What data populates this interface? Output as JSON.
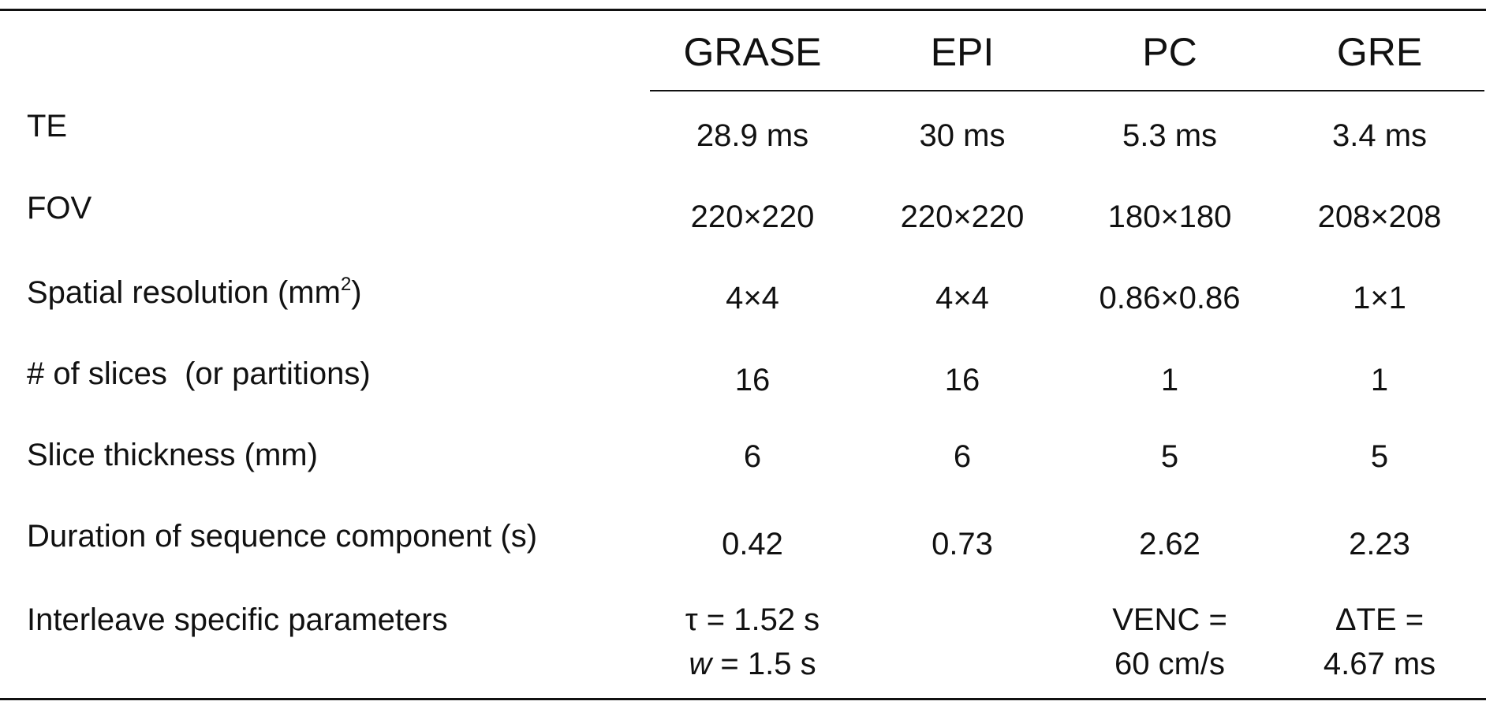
{
  "table": {
    "columns": [
      "GRASE",
      "EPI",
      "PC",
      "GRE"
    ],
    "rows": [
      {
        "label": "TE",
        "cells": [
          "28.9 ms",
          "30 ms",
          "5.3 ms",
          "3.4 ms"
        ]
      },
      {
        "label": "FOV",
        "cells": [
          "220×220",
          "220×220",
          "180×180",
          "208×208"
        ]
      },
      {
        "label": "Spatial resolution (mm",
        "label_sup": "2",
        "label_end": ")",
        "cells": [
          "4×4",
          "4×4",
          "0.86×0.86",
          "1×1"
        ]
      },
      {
        "label": "# of slices  (or partitions)",
        "cells": [
          "16",
          "16",
          "1",
          "1"
        ]
      },
      {
        "label": "Slice thickness (mm)",
        "cells": [
          "6",
          "6",
          "5",
          "5"
        ]
      },
      {
        "label": "Duration of sequence component (s)",
        "cells": [
          "0.42",
          "0.73",
          "2.62",
          "2.23"
        ]
      },
      {
        "label": "Interleave specific parameters",
        "cells": [
          [
            "τ = 1.52 s",
            {
              "italic": "w",
              "text": " = 1.5 s"
            }
          ],
          null,
          [
            "VENC =",
            "60 cm/s"
          ],
          [
            "ΔTE =",
            "4.67 ms"
          ]
        ]
      }
    ]
  }
}
